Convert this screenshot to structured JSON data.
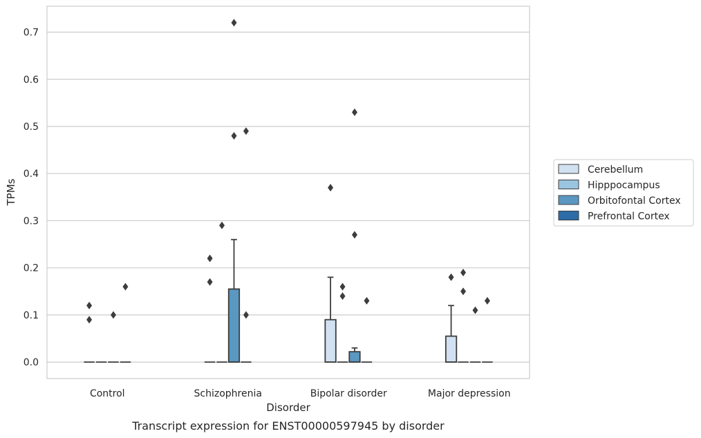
{
  "chart_data": {
    "type": "box",
    "xlabel": "Disorder",
    "ylabel": "TPMs",
    "caption": "Transcript expression for ENST00000597945 by disorder",
    "categories": [
      "Control",
      "Schizophrenia",
      "Bipolar disorder",
      "Major depression"
    ],
    "ylim": [
      -0.035,
      0.755
    ],
    "yticks": [
      0.0,
      0.1,
      0.2,
      0.3,
      0.4,
      0.5,
      0.6,
      0.7
    ],
    "ytick_labels": [
      "0.0",
      "0.1",
      "0.2",
      "0.3",
      "0.4",
      "0.5",
      "0.6",
      "0.7"
    ],
    "grid": true,
    "legend_position": "right",
    "series": [
      {
        "name": "Cerebellum",
        "color": "#d1e1f1",
        "boxes": [
          {
            "q1": 0,
            "median": 0,
            "q3": 0,
            "whisker_low": 0,
            "whisker_high": 0,
            "outliers": [
              0.09,
              0.12
            ]
          },
          {
            "q1": 0,
            "median": 0,
            "q3": 0,
            "whisker_low": 0,
            "whisker_high": 0,
            "outliers": [
              0.17,
              0.22
            ]
          },
          {
            "q1": 0,
            "median": 0,
            "q3": 0.09,
            "whisker_low": 0,
            "whisker_high": 0.18,
            "outliers": [
              0.37
            ]
          },
          {
            "q1": 0,
            "median": 0,
            "q3": 0.055,
            "whisker_low": 0,
            "whisker_high": 0.12,
            "outliers": [
              0.18
            ]
          }
        ]
      },
      {
        "name": "Hipppocampus",
        "color": "#9ac4df",
        "boxes": [
          {
            "q1": 0,
            "median": 0,
            "q3": 0,
            "whisker_low": 0,
            "whisker_high": 0,
            "outliers": []
          },
          {
            "q1": 0,
            "median": 0,
            "q3": 0,
            "whisker_low": 0,
            "whisker_high": 0,
            "outliers": [
              0.29
            ]
          },
          {
            "q1": 0,
            "median": 0,
            "q3": 0,
            "whisker_low": 0,
            "whisker_high": 0,
            "outliers": [
              0.14,
              0.16
            ]
          },
          {
            "q1": 0,
            "median": 0,
            "q3": 0,
            "whisker_low": 0,
            "whisker_high": 0,
            "outliers": [
              0.15,
              0.19
            ]
          }
        ]
      },
      {
        "name": "Orbitofontal Cortex",
        "color": "#5a97c1",
        "boxes": [
          {
            "q1": 0,
            "median": 0,
            "q3": 0,
            "whisker_low": 0,
            "whisker_high": 0,
            "outliers": [
              0.1
            ]
          },
          {
            "q1": 0,
            "median": 0,
            "q3": 0.155,
            "whisker_low": 0,
            "whisker_high": 0.26,
            "outliers": [
              0.48,
              0.72
            ]
          },
          {
            "q1": 0,
            "median": 0,
            "q3": 0.022,
            "whisker_low": 0,
            "whisker_high": 0.03,
            "outliers": [
              0.27,
              0.53
            ]
          },
          {
            "q1": 0,
            "median": 0,
            "q3": 0,
            "whisker_low": 0,
            "whisker_high": 0,
            "outliers": [
              0.11
            ]
          }
        ]
      },
      {
        "name": "Prefrontal Cortex",
        "color": "#2d6ca6",
        "boxes": [
          {
            "q1": 0,
            "median": 0,
            "q3": 0,
            "whisker_low": 0,
            "whisker_high": 0,
            "outliers": [
              0.16
            ]
          },
          {
            "q1": 0,
            "median": 0,
            "q3": 0,
            "whisker_low": 0,
            "whisker_high": 0,
            "outliers": [
              0.1,
              0.49
            ]
          },
          {
            "q1": 0,
            "median": 0,
            "q3": 0,
            "whisker_low": 0,
            "whisker_high": 0,
            "outliers": [
              0.13
            ]
          },
          {
            "q1": 0,
            "median": 0,
            "q3": 0,
            "whisker_low": 0,
            "whisker_high": 0,
            "outliers": [
              0.13
            ]
          }
        ]
      }
    ]
  }
}
